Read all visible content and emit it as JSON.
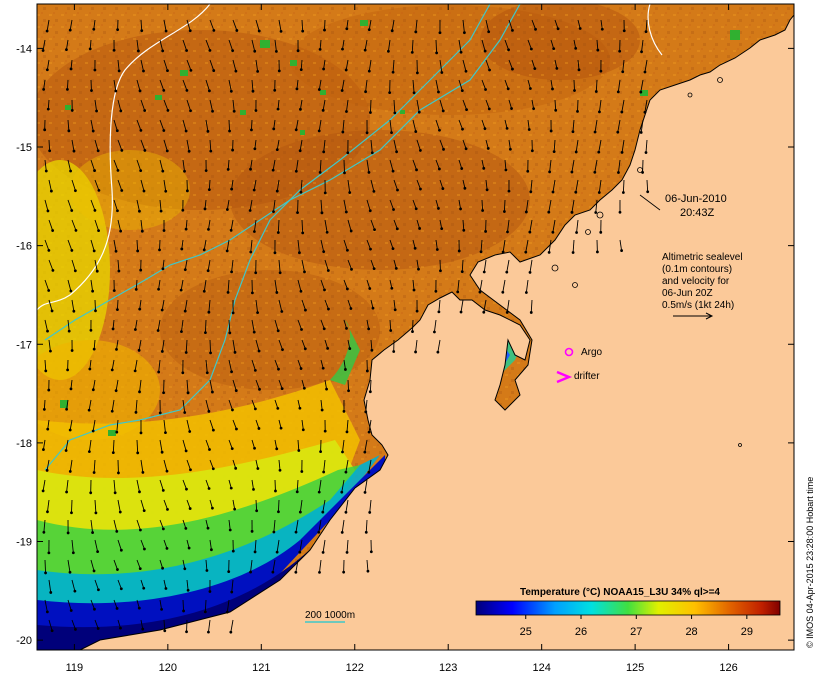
{
  "map": {
    "timestamp_date": "06-Jun-2010",
    "timestamp_time": "20:43Z",
    "lon_ticks": [
      119,
      120,
      121,
      122,
      123,
      124,
      125,
      126
    ],
    "lat_ticks": [
      -14,
      -15,
      -16,
      -17,
      -18,
      -19,
      -20
    ],
    "lon_range": [
      118.6,
      126.7
    ],
    "lat_range": [
      -20.1,
      -13.55
    ],
    "sealevel_note": [
      "Altimetric sealevel",
      "(0.1m contours)",
      "and velocity for",
      "06-Jun 20Z",
      "0.5m/s (1kt 24h)"
    ],
    "legend_argo": "Argo",
    "legend_drifter": "drifter",
    "legend_isobath": "200  1000m",
    "colorbar": {
      "title": "Temperature (°C) NOAA15_L3U 34% ql>=4",
      "tick_values": [
        25,
        26,
        27,
        28,
        29
      ],
      "range": [
        24.1,
        29.6
      ]
    },
    "credit": "© IMOS 04-Apr-2015 23:28:00 Hobart time",
    "colors": {
      "land": "#fbc999",
      "argo": "#ff00ff",
      "drifter": "#ff00ff",
      "isobath": "#40c8c8",
      "sealevel_contour": "#ffffff"
    }
  }
}
